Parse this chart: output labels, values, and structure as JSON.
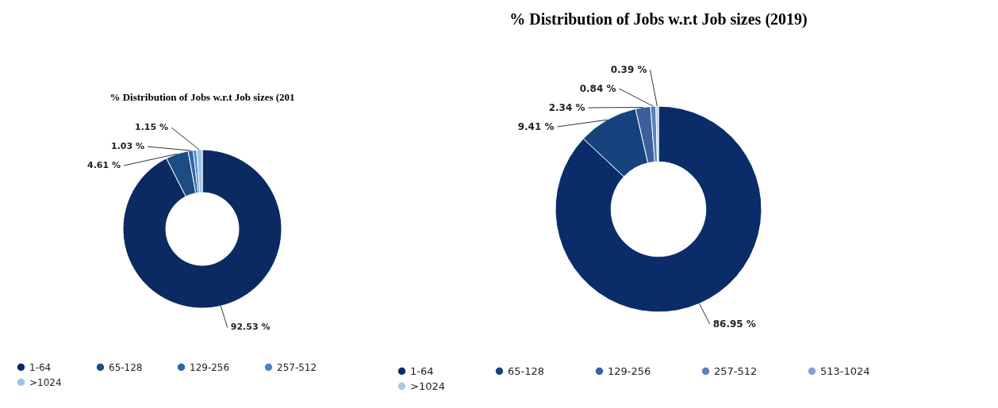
{
  "chart_data": [
    {
      "type": "donut",
      "title": "% Distribution of Jobs w.r.t Job sizes (201",
      "categories": [
        "1-64",
        "65-128",
        "129-256",
        "257-512",
        ">1024"
      ],
      "values": [
        92.53,
        4.61,
        1.03,
        0.68,
        1.15
      ],
      "value_labels": [
        "92.53 %",
        "4.61 %",
        "1.03 %",
        null,
        "1.15 %"
      ],
      "colors": [
        "#0b2a62",
        "#1b4c84",
        "#2e66a8",
        "#4a86c8",
        "#9cc4ee"
      ],
      "legend": "bottom"
    },
    {
      "type": "donut",
      "title": "% Distribution of Jobs w.r.t Job sizes (2019)",
      "categories": [
        "1-64",
        "65-128",
        "129-256",
        "257-512",
        "513-1024",
        ">1024"
      ],
      "values": [
        86.95,
        9.41,
        2.34,
        0.84,
        null,
        0.39
      ],
      "value_labels": [
        "86.95 %",
        "9.41 %",
        "2.34 %",
        "0.84 %",
        null,
        "0.39 %"
      ],
      "colors": [
        "#0a2d6a",
        "#16427e",
        "#3b5f9e",
        "#5a80b8",
        "#7fa0db",
        "#aac8ee"
      ],
      "legend": "bottom"
    }
  ]
}
